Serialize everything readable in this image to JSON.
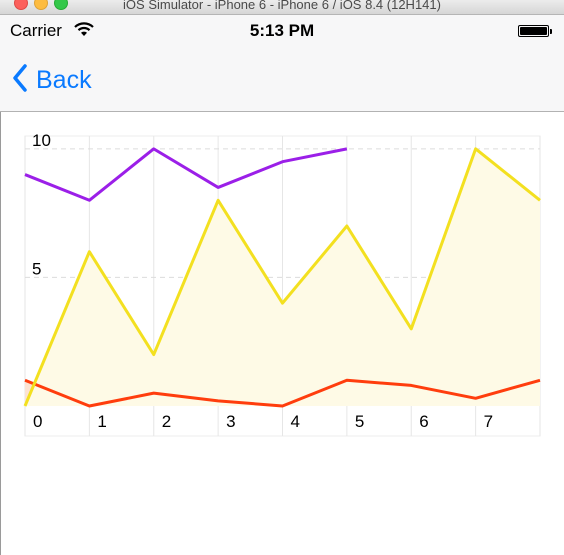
{
  "window": {
    "title": "iOS Simulator - iPhone 6 - iPhone 6 / iOS 8.4 (12H141)"
  },
  "status_bar": {
    "carrier": "Carrier",
    "time": "5:13 PM"
  },
  "nav": {
    "back_label": "Back"
  },
  "chart_data": {
    "type": "area",
    "x": [
      0,
      1,
      2,
      3,
      4,
      5,
      6,
      7,
      8
    ],
    "x_tick_labels": [
      "0",
      "1",
      "2",
      "3",
      "4",
      "5",
      "6",
      "7"
    ],
    "y_tick_labels": [
      "5",
      "10"
    ],
    "ylim": [
      0,
      10.5
    ],
    "grid": true,
    "series": [
      {
        "style": "line",
        "color": "#9b1fe8",
        "values": [
          9,
          8,
          10,
          8.5,
          9.5,
          10,
          null,
          null,
          null
        ]
      },
      {
        "style": "area",
        "color": "#f3e020",
        "fill": "#fefae6",
        "values": [
          0,
          6,
          2,
          8,
          4,
          7,
          3,
          10,
          8
        ]
      },
      {
        "style": "area",
        "color": "#ff3d0d",
        "fill": "#fde3d2",
        "values": [
          1,
          0,
          0.5,
          0.2,
          0,
          1,
          0.8,
          0.3,
          1
        ]
      }
    ]
  }
}
